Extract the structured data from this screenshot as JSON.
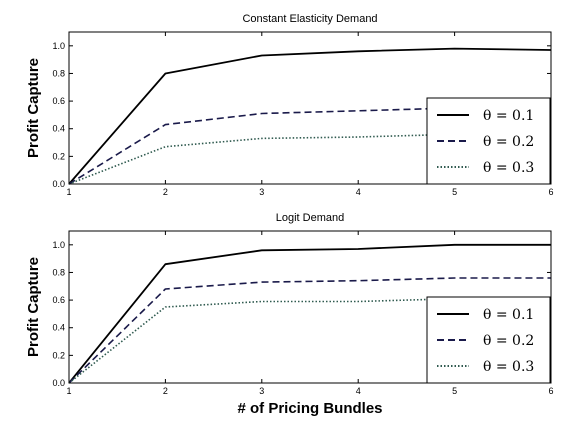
{
  "chart_data": [
    {
      "type": "line",
      "title": "Constant Elasticity Demand",
      "ylabel": "Profit Capture",
      "xlabel": "",
      "xlim": [
        1,
        6
      ],
      "ylim": [
        0,
        1.1
      ],
      "xticks": [
        "1",
        "2",
        "3",
        "4",
        "5",
        "6"
      ],
      "yticks": [
        "0.0",
        "0.2",
        "0.4",
        "0.6",
        "0.8",
        "1.0"
      ],
      "legend_position": "center-right",
      "x": [
        1,
        2,
        3,
        4,
        5,
        6
      ],
      "series": [
        {
          "name": "θ = 0.1",
          "values": [
            0.0,
            0.8,
            0.93,
            0.96,
            0.98,
            0.97
          ],
          "color": "#000000",
          "style": "solid"
        },
        {
          "name": "θ = 0.2",
          "values": [
            0.0,
            0.43,
            0.51,
            0.53,
            0.55,
            0.56
          ],
          "color": "#1a1a4a",
          "style": "dashed"
        },
        {
          "name": "θ = 0.3",
          "values": [
            0.0,
            0.27,
            0.33,
            0.34,
            0.36,
            0.37
          ],
          "color": "#2f5a4f",
          "style": "dotted"
        }
      ]
    },
    {
      "type": "line",
      "title": "Logit Demand",
      "ylabel": "Profit Capture",
      "xlabel": "# of Pricing Bundles",
      "xlim": [
        1,
        6
      ],
      "ylim": [
        0,
        1.1
      ],
      "xticks": [
        "1",
        "2",
        "3",
        "4",
        "5",
        "6"
      ],
      "yticks": [
        "0.0",
        "0.2",
        "0.4",
        "0.6",
        "0.8",
        "1.0"
      ],
      "legend_position": "bottom-right",
      "x": [
        1,
        2,
        3,
        4,
        5,
        6
      ],
      "series": [
        {
          "name": "θ = 0.1",
          "values": [
            0.0,
            0.86,
            0.96,
            0.97,
            1.0,
            1.0
          ],
          "color": "#000000",
          "style": "solid"
        },
        {
          "name": "θ = 0.2",
          "values": [
            0.0,
            0.68,
            0.73,
            0.74,
            0.76,
            0.76
          ],
          "color": "#1a1a4a",
          "style": "dashed"
        },
        {
          "name": "θ = 0.3",
          "values": [
            0.0,
            0.55,
            0.59,
            0.59,
            0.61,
            0.61
          ],
          "color": "#2f5a4f",
          "style": "dotted"
        }
      ]
    }
  ]
}
